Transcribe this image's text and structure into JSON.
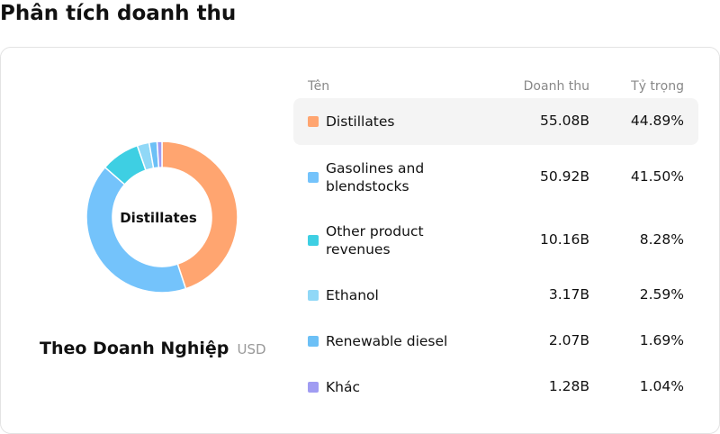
{
  "page": {
    "title": "Phân tích doanh thu"
  },
  "subtitle": {
    "main": "Theo Doanh Nghiệp",
    "unit": "USD"
  },
  "table_headers": {
    "name": "Tên",
    "revenue": "Doanh thu",
    "share": "Tỷ trọng"
  },
  "colors": {
    "distillates": "#FFA570",
    "gasolines": "#74C3FB",
    "other": "#3ECFE3",
    "ethanol": "#90D8F7",
    "renewable": "#6CC0F6",
    "khac": "#A09CF2"
  },
  "chart_data": {
    "type": "pie",
    "center_label": "Distillates",
    "unit": "USD",
    "slices": [
      {
        "name": "Distillates",
        "value": 55.08,
        "revenue": "55.08B",
        "share": "44.89%",
        "share_value": 44.89,
        "color": "#FFA570"
      },
      {
        "name": "Gasolines and blendstocks",
        "value": 50.92,
        "revenue": "50.92B",
        "share": "41.50%",
        "share_value": 41.5,
        "color": "#74C3FB"
      },
      {
        "name": "Other product revenues",
        "value": 10.16,
        "revenue": "10.16B",
        "share": "8.28%",
        "share_value": 8.28,
        "color": "#3ECFE3"
      },
      {
        "name": "Ethanol",
        "value": 3.17,
        "revenue": "3.17B",
        "share": "2.59%",
        "share_value": 2.59,
        "color": "#90D8F7"
      },
      {
        "name": "Renewable diesel",
        "value": 2.07,
        "revenue": "2.07B",
        "share": "1.69%",
        "share_value": 1.69,
        "color": "#6CC0F6"
      },
      {
        "name": "Khác",
        "value": 1.28,
        "revenue": "1.28B",
        "share": "1.04%",
        "share_value": 1.04,
        "color": "#A09CF2"
      }
    ]
  }
}
